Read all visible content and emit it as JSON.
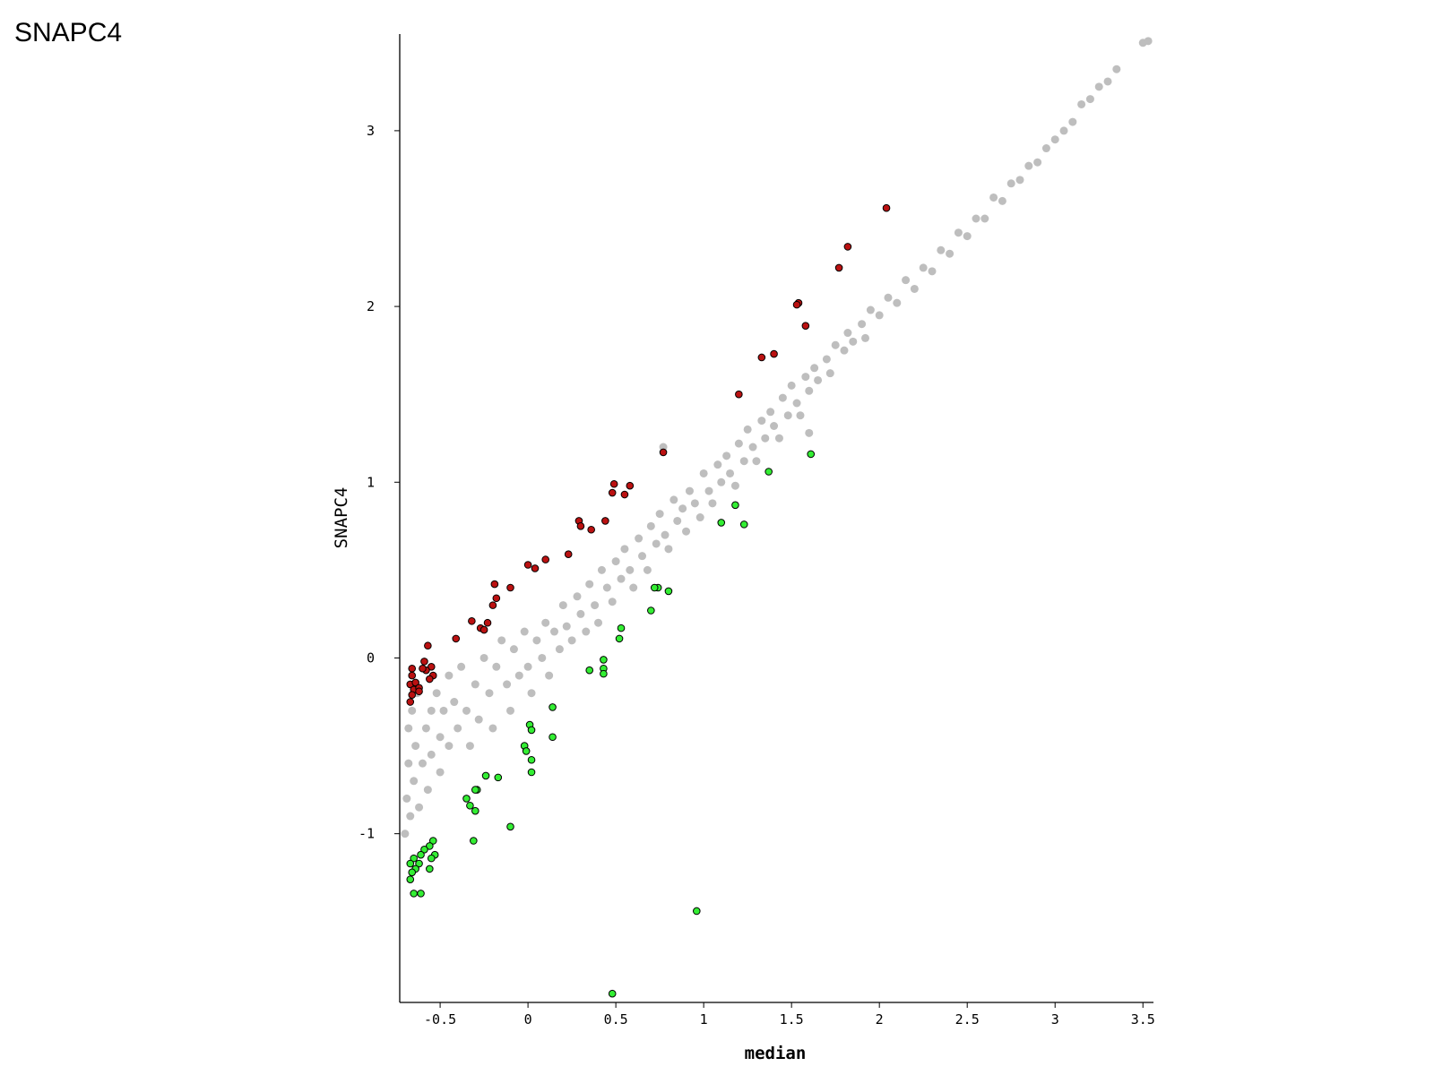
{
  "chart_data": {
    "type": "scatter",
    "title": "SNAPC4",
    "xlabel": "median",
    "ylabel": "SNAPC4",
    "xlim": [
      -0.73,
      3.56
    ],
    "ylim": [
      -1.96,
      3.55
    ],
    "xticks": [
      -0.5,
      0,
      0.5,
      1,
      1.5,
      2,
      2.5,
      3,
      3.5
    ],
    "yticks": [
      -1,
      0,
      1,
      2,
      3
    ],
    "grid": false,
    "series": [
      {
        "color": "#bebebe",
        "x": [
          -0.7,
          -0.69,
          -0.68,
          -0.68,
          -0.67,
          -0.66,
          -0.65,
          -0.64,
          -0.63,
          -0.62,
          -0.6,
          -0.58,
          -0.57,
          -0.55,
          -0.55,
          -0.52,
          -0.5,
          -0.5,
          -0.48,
          -0.45,
          -0.45,
          -0.42,
          -0.4,
          -0.38,
          -0.35,
          -0.33,
          -0.3,
          -0.28,
          -0.25,
          -0.22,
          -0.2,
          -0.18,
          -0.15,
          -0.12,
          -0.1,
          -0.08,
          -0.05,
          -0.02,
          0.0,
          0.02,
          0.05,
          0.08,
          0.1,
          0.12,
          0.15,
          0.18,
          0.2,
          0.22,
          0.25,
          0.28,
          0.3,
          0.33,
          0.35,
          0.38,
          0.4,
          0.42,
          0.45,
          0.48,
          0.5,
          0.53,
          0.55,
          0.58,
          0.6,
          0.63,
          0.65,
          0.68,
          0.7,
          0.73,
          0.75,
          0.78,
          0.8,
          0.83,
          0.85,
          0.88,
          0.9,
          0.92,
          0.95,
          0.98,
          1.0,
          1.03,
          1.05,
          1.08,
          1.1,
          1.13,
          1.15,
          1.18,
          1.2,
          1.23,
          1.25,
          1.28,
          1.3,
          1.33,
          1.35,
          1.38,
          1.4,
          1.43,
          1.45,
          1.48,
          1.5,
          1.53,
          1.55,
          1.58,
          1.6,
          1.63,
          1.65,
          1.7,
          1.72,
          1.75,
          1.8,
          1.82,
          1.85,
          1.9,
          1.92,
          1.95,
          2.0,
          2.05,
          2.1,
          2.15,
          2.2,
          2.25,
          2.3,
          2.35,
          2.4,
          2.45,
          2.5,
          2.55,
          2.6,
          2.65,
          2.7,
          2.75,
          2.8,
          2.85,
          2.9,
          2.95,
          3.0,
          3.05,
          3.1,
          3.15,
          3.2,
          3.25,
          3.3,
          3.35,
          3.5,
          3.53,
          0.77,
          1.6
        ],
        "y": [
          -1.0,
          -0.8,
          -0.6,
          -0.4,
          -0.9,
          -0.3,
          -0.7,
          -0.5,
          -0.2,
          -0.85,
          -0.6,
          -0.4,
          -0.75,
          -0.3,
          -0.55,
          -0.2,
          -0.45,
          -0.65,
          -0.3,
          -0.1,
          -0.5,
          -0.25,
          -0.4,
          -0.05,
          -0.3,
          -0.5,
          -0.15,
          -0.35,
          0.0,
          -0.2,
          -0.4,
          -0.05,
          0.1,
          -0.15,
          -0.3,
          0.05,
          -0.1,
          0.15,
          -0.05,
          -0.2,
          0.1,
          0.0,
          0.2,
          -0.1,
          0.15,
          0.05,
          0.3,
          0.18,
          0.1,
          0.35,
          0.25,
          0.15,
          0.42,
          0.3,
          0.2,
          0.5,
          0.4,
          0.32,
          0.55,
          0.45,
          0.62,
          0.5,
          0.4,
          0.68,
          0.58,
          0.5,
          0.75,
          0.65,
          0.82,
          0.7,
          0.62,
          0.9,
          0.78,
          0.85,
          0.72,
          0.95,
          0.88,
          0.8,
          1.05,
          0.95,
          0.88,
          1.1,
          1.0,
          1.15,
          1.05,
          0.98,
          1.22,
          1.12,
          1.3,
          1.2,
          1.12,
          1.35,
          1.25,
          1.4,
          1.32,
          1.25,
          1.48,
          1.38,
          1.55,
          1.45,
          1.38,
          1.6,
          1.52,
          1.65,
          1.58,
          1.7,
          1.62,
          1.78,
          1.75,
          1.85,
          1.8,
          1.9,
          1.82,
          1.98,
          1.95,
          2.05,
          2.02,
          2.15,
          2.1,
          2.22,
          2.2,
          2.32,
          2.3,
          2.42,
          2.4,
          2.5,
          2.5,
          2.62,
          2.6,
          2.7,
          2.72,
          2.8,
          2.82,
          2.9,
          2.95,
          3.0,
          3.05,
          3.15,
          3.18,
          3.25,
          3.28,
          3.35,
          3.5,
          3.51,
          1.2,
          1.28
        ]
      },
      {
        "color": "#bb1111",
        "edgecolor": "#000000",
        "x": [
          2.04,
          1.82,
          1.77,
          1.54,
          1.53,
          1.58,
          1.4,
          1.33,
          1.2,
          0.77,
          0.49,
          0.48,
          0.58,
          0.55,
          0.29,
          0.3,
          0.36,
          0.44,
          0.23,
          0.1,
          0.0,
          0.04,
          -0.19,
          -0.1,
          -0.18,
          -0.2,
          -0.32,
          -0.23,
          -0.27,
          -0.25,
          -0.41,
          -0.57,
          -0.59,
          -0.55,
          -0.54,
          -0.58,
          -0.56,
          -0.6,
          -0.66,
          -0.66,
          -0.67,
          -0.65,
          -0.66,
          -0.67,
          -0.64,
          -0.62,
          -0.62
        ],
        "y": [
          2.56,
          2.34,
          2.22,
          2.02,
          2.01,
          1.89,
          1.73,
          1.71,
          1.5,
          1.17,
          0.99,
          0.94,
          0.98,
          0.93,
          0.78,
          0.75,
          0.73,
          0.78,
          0.59,
          0.56,
          0.53,
          0.51,
          0.42,
          0.4,
          0.34,
          0.3,
          0.21,
          0.2,
          0.17,
          0.16,
          0.11,
          0.07,
          -0.02,
          -0.05,
          -0.1,
          -0.07,
          -0.12,
          -0.06,
          -0.06,
          -0.1,
          -0.15,
          -0.18,
          -0.21,
          -0.25,
          -0.14,
          -0.17,
          -0.19
        ]
      },
      {
        "color": "#33ee33",
        "edgecolor": "#000000",
        "x": [
          1.61,
          1.37,
          1.18,
          1.1,
          1.23,
          0.74,
          0.72,
          0.8,
          0.7,
          0.53,
          0.52,
          0.43,
          0.43,
          0.43,
          0.35,
          0.14,
          0.14,
          0.01,
          0.02,
          -0.02,
          -0.01,
          0.02,
          0.02,
          -0.24,
          -0.17,
          -0.29,
          -0.3,
          -0.35,
          -0.33,
          -0.3,
          -0.1,
          -0.31,
          0.96,
          0.48,
          -0.54,
          -0.56,
          -0.59,
          -0.53,
          -0.55,
          -0.61,
          -0.62,
          -0.64,
          -0.66,
          -0.67,
          -0.65,
          -0.67,
          -0.56,
          -0.65,
          -0.61
        ],
        "y": [
          1.16,
          1.06,
          0.87,
          0.77,
          0.76,
          0.4,
          0.4,
          0.38,
          0.27,
          0.17,
          0.11,
          -0.01,
          -0.06,
          -0.09,
          -0.07,
          -0.28,
          -0.45,
          -0.38,
          -0.41,
          -0.5,
          -0.53,
          -0.58,
          -0.65,
          -0.67,
          -0.68,
          -0.75,
          -0.75,
          -0.8,
          -0.84,
          -0.87,
          -0.96,
          -1.04,
          -1.44,
          -1.91,
          -1.04,
          -1.07,
          -1.09,
          -1.12,
          -1.14,
          -1.12,
          -1.17,
          -1.2,
          -1.22,
          -1.26,
          -1.14,
          -1.17,
          -1.2,
          -1.34,
          -1.34
        ]
      }
    ]
  }
}
